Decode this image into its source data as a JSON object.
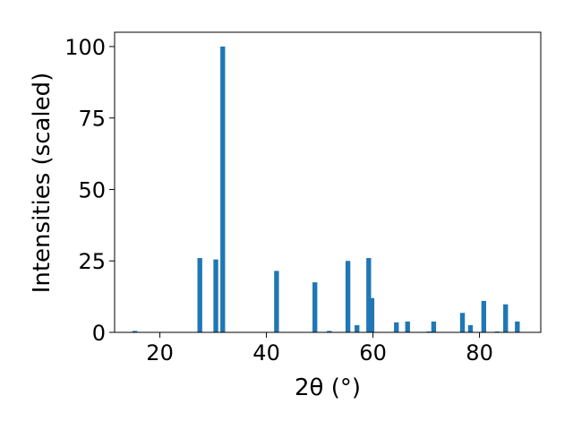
{
  "chart_data": {
    "type": "bar",
    "xlabel": "2θ (°)",
    "ylabel": "Intensities (scaled)",
    "xlim": [
      11.5,
      91.5
    ],
    "ylim": [
      0,
      105
    ],
    "xticks": [
      20,
      40,
      60,
      80
    ],
    "yticks": [
      0,
      25,
      50,
      75,
      100
    ],
    "grid": false,
    "color": "#1f77b4",
    "bar_width": 0.9,
    "points": [
      {
        "x": 15.3,
        "y": 0.5
      },
      {
        "x": 27.5,
        "y": 26
      },
      {
        "x": 30.5,
        "y": 25.5
      },
      {
        "x": 31.8,
        "y": 100
      },
      {
        "x": 41.9,
        "y": 21.5
      },
      {
        "x": 49.1,
        "y": 17.5
      },
      {
        "x": 51.8,
        "y": 0.5
      },
      {
        "x": 55.3,
        "y": 25
      },
      {
        "x": 57.0,
        "y": 2.5
      },
      {
        "x": 59.2,
        "y": 26
      },
      {
        "x": 59.8,
        "y": 12
      },
      {
        "x": 64.4,
        "y": 3.5
      },
      {
        "x": 66.5,
        "y": 3.8
      },
      {
        "x": 70.5,
        "y": 0.3
      },
      {
        "x": 71.4,
        "y": 3.8
      },
      {
        "x": 76.8,
        "y": 6.8
      },
      {
        "x": 78.3,
        "y": 2.5
      },
      {
        "x": 80.8,
        "y": 11
      },
      {
        "x": 83.3,
        "y": 0.3
      },
      {
        "x": 84.9,
        "y": 9.8
      },
      {
        "x": 87.1,
        "y": 3.8
      }
    ]
  }
}
